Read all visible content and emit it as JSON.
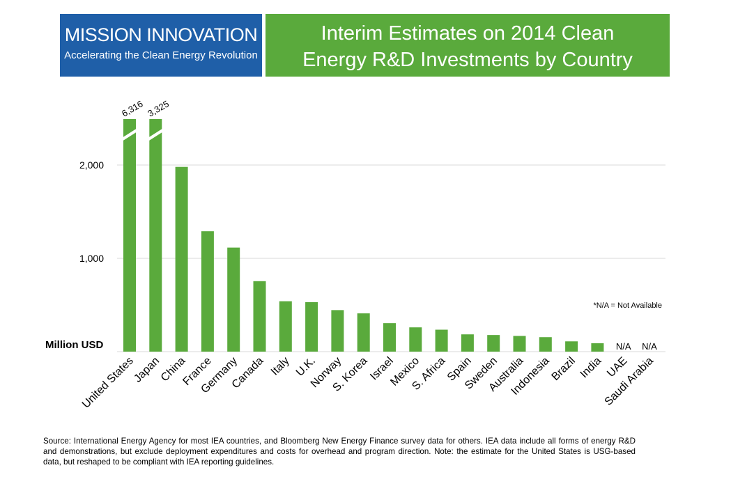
{
  "logo": {
    "title": "MISSION INNOVATION",
    "tagline": "Accelerating the Clean Energy Revolution"
  },
  "header": {
    "title_line1": "Interim Estimates on 2014 Clean",
    "title_line2": "Energy R&D Investments by Country"
  },
  "colors": {
    "bar": "#5aaa3c",
    "logo_bg": "#1f5fa8",
    "title_bg": "#5aaa3c",
    "grid": "#d9d9d9"
  },
  "chart_data": {
    "type": "bar",
    "title": "",
    "xlabel": "",
    "ylabel": "Million USD",
    "ylim": [
      0,
      2500
    ],
    "yticks": [
      1000,
      2000
    ],
    "ytick_labels": [
      "1,000",
      "2,000"
    ],
    "grid": true,
    "axis_break": true,
    "categories": [
      "United States",
      "Japan",
      "China",
      "France",
      "Germany",
      "Canada",
      "Italy",
      "U.K.",
      "Norway",
      "S. Korea",
      "Israel",
      "Mexico",
      "S. Africa",
      "Spain",
      "Sweden",
      "Australia",
      "Indonesia",
      "Brazil",
      "India",
      "UAE",
      "Saudi Arabia"
    ],
    "values": [
      6316,
      3325,
      1980,
      1290,
      1115,
      755,
      540,
      530,
      445,
      410,
      305,
      260,
      235,
      185,
      178,
      168,
      155,
      110,
      90,
      null,
      null
    ],
    "value_labels": [
      "6,316",
      "3,325",
      "",
      "",
      "",
      "",
      "",
      "",
      "",
      "",
      "",
      "",
      "",
      "",
      "",
      "",
      "",
      "",
      "",
      "N/A",
      "N/A"
    ],
    "annotations": [
      "*N/A = Not Available"
    ]
  },
  "source": {
    "text": "Source: International Energy Agency for most IEA countries, and Bloomberg New Energy Finance survey data for others. IEA data include all forms of energy R&D and demonstrations, but exclude deployment expenditures and costs for overhead and program direction. Note: the estimate for the United States is USG-based data, but reshaped to be compliant with IEA reporting guidelines."
  }
}
